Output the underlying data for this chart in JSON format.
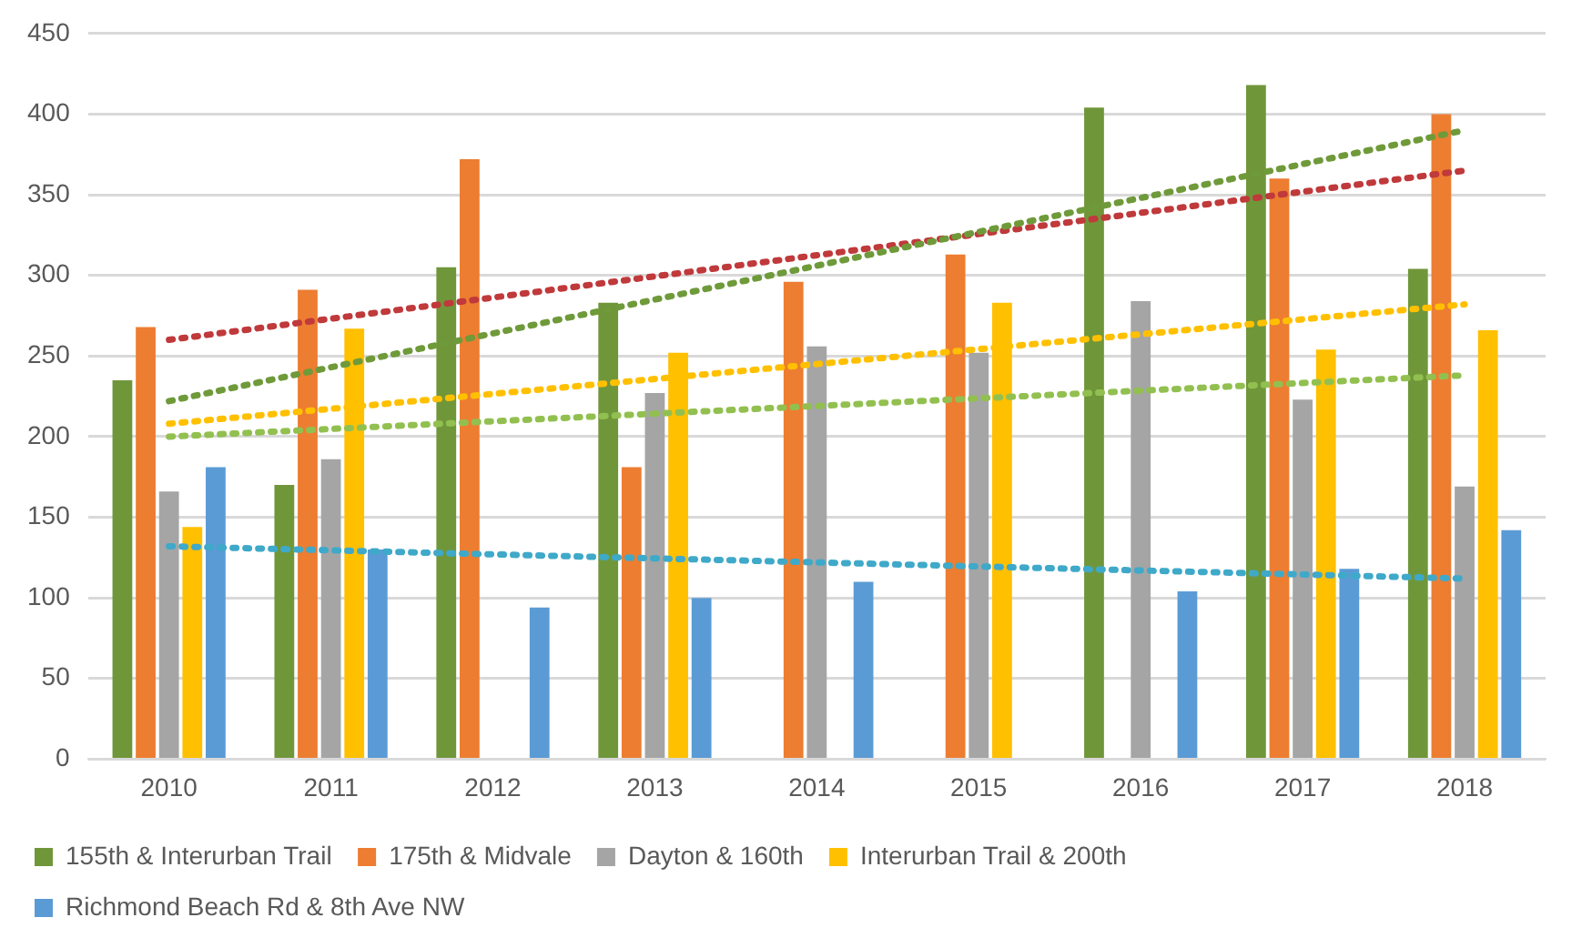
{
  "chart_data": {
    "type": "bar",
    "categories": [
      "2010",
      "2011",
      "2012",
      "2013",
      "2014",
      "2015",
      "2016",
      "2017",
      "2018"
    ],
    "series": [
      {
        "name": "155th & Interurban Trail",
        "color": "#70963a",
        "values": [
          235,
          170,
          305,
          283,
          null,
          null,
          404,
          418,
          304
        ]
      },
      {
        "name": "175th & Midvale",
        "color": "#ed7d31",
        "values": [
          268,
          291,
          372,
          181,
          296,
          313,
          null,
          360,
          400
        ]
      },
      {
        "name": "Dayton & 160th",
        "color": "#a5a5a5",
        "values": [
          166,
          186,
          null,
          227,
          256,
          252,
          284,
          223,
          169
        ]
      },
      {
        "name": "Interurban Trail & 200th",
        "color": "#ffc000",
        "values": [
          144,
          267,
          null,
          252,
          null,
          283,
          null,
          254,
          266
        ]
      },
      {
        "name": "Richmond Beach Rd & 8th Ave NW",
        "color": "#5b9bd5",
        "values": [
          181,
          130,
          94,
          100,
          110,
          null,
          104,
          118,
          142
        ]
      },
      {
        "type": "line",
        "color": "#6f9a3a",
        "line_style": "dotted",
        "marker": "none",
        "values": [
          222,
          null,
          null,
          null,
          null,
          null,
          null,
          null,
          390
        ]
      },
      {
        "type": "line",
        "color": "#c0393b",
        "line_style": "dotted",
        "marker": "none",
        "values": [
          260,
          null,
          null,
          null,
          null,
          null,
          null,
          null,
          365
        ]
      },
      {
        "type": "line",
        "color": "#92c050",
        "line_style": "dotted",
        "marker": "none",
        "values": [
          200,
          null,
          null,
          null,
          null,
          null,
          null,
          null,
          238
        ]
      },
      {
        "type": "line",
        "color": "#ffc000",
        "line_style": "dotted",
        "marker": "none",
        "values": [
          208,
          null,
          null,
          null,
          null,
          null,
          null,
          null,
          282
        ]
      },
      {
        "type": "line",
        "color": "#3fa9c9",
        "line_style": "dotted",
        "marker": "none",
        "values": [
          132,
          null,
          null,
          null,
          null,
          null,
          null,
          null,
          112
        ]
      }
    ],
    "ylim": [
      0,
      450
    ],
    "yticks": [
      0,
      50,
      100,
      150,
      200,
      250,
      300,
      350,
      400,
      450
    ],
    "grid": "y",
    "legend": "bottom"
  }
}
